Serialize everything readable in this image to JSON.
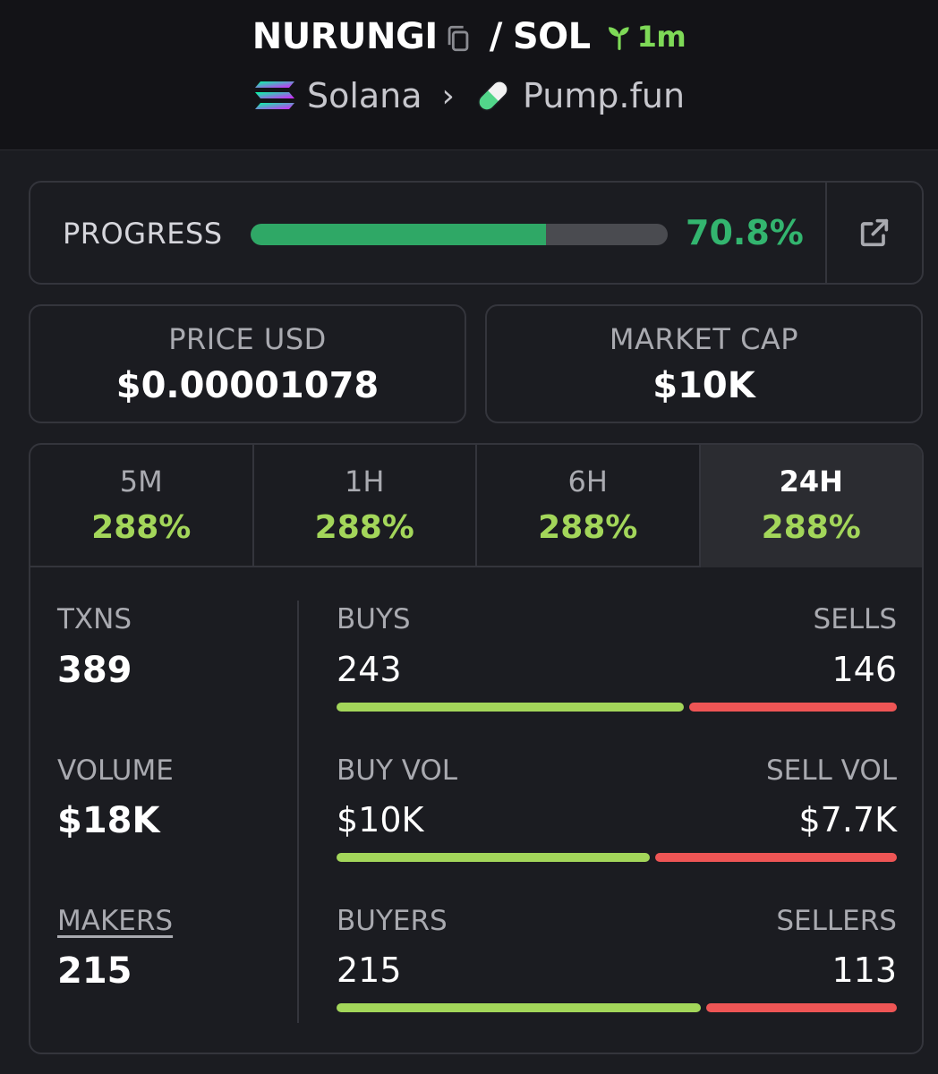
{
  "header": {
    "token": "NURUNGI",
    "slash": "/",
    "quote": "SOL",
    "age": "1m",
    "chain": "Solana",
    "separator": "›",
    "dex": "Pump.fun"
  },
  "progress": {
    "label": "PROGRESS",
    "value_text": "70.8%",
    "fraction": 0.708
  },
  "price_usd": {
    "label": "PRICE USD",
    "value": "$0.00001078"
  },
  "market_cap": {
    "label": "MARKET CAP",
    "value": "$10K"
  },
  "tabs": [
    {
      "label": "5M",
      "value": "288%"
    },
    {
      "label": "1H",
      "value": "288%"
    },
    {
      "label": "6H",
      "value": "288%"
    },
    {
      "label": "24H",
      "value": "288%",
      "active": true
    }
  ],
  "metrics": {
    "txns": {
      "label": "TXNS",
      "value": "389"
    },
    "volume": {
      "label": "VOLUME",
      "value": "$18K"
    },
    "makers": {
      "label": "MAKERS",
      "value": "215"
    }
  },
  "pairs": {
    "txns": {
      "left_label": "BUYS",
      "left_value": "243",
      "right_label": "SELLS",
      "right_value": "146",
      "buy_fraction": 0.625
    },
    "volume": {
      "left_label": "BUY VOL",
      "left_value": "$10K",
      "right_label": "SELL VOL",
      "right_value": "$7.7K",
      "buy_fraction": 0.565
    },
    "makers": {
      "left_label": "BUYERS",
      "left_value": "215",
      "right_label": "SELLERS",
      "right_value": "113",
      "buy_fraction": 0.656
    }
  },
  "colors": {
    "green": "#2fa866",
    "lime": "#a3d65a",
    "red": "#ee5555",
    "background": "#1b1c21"
  },
  "icons": {
    "copy": "copy-icon",
    "age": "seedling-icon",
    "chain": "solana-logo-icon",
    "dex": "pill-icon",
    "external": "external-link-icon"
  }
}
